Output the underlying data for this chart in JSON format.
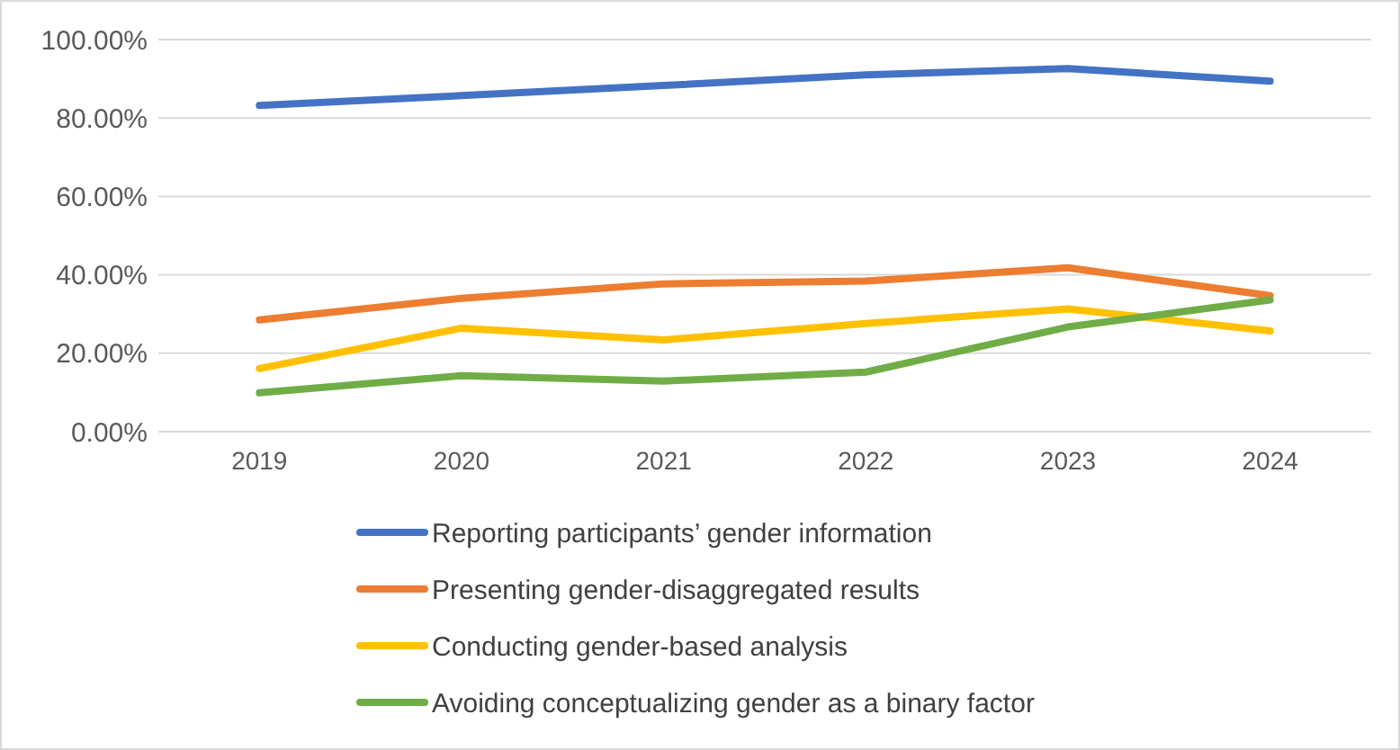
{
  "chart_data": {
    "type": "line",
    "categories": [
      "2019",
      "2020",
      "2021",
      "2022",
      "2023",
      "2024"
    ],
    "series": [
      {
        "name": "Reporting participants’ gender information",
        "color": "#4472c4",
        "values": [
          83.2,
          85.7,
          88.3,
          91,
          92.6,
          89.4
        ]
      },
      {
        "name": "Presenting gender-disaggregated results",
        "color": "#ed7d31",
        "values": [
          28.5,
          34,
          37.7,
          38.4,
          41.8,
          34.7
        ]
      },
      {
        "name": "Conducting gender-based analysis",
        "color": "#ffc000",
        "values": [
          16.1,
          26.4,
          23.4,
          27.6,
          31.3,
          25.7
        ]
      },
      {
        "name": "Avoiding conceptualizing gender as a binary factor",
        "color": "#70ad47",
        "values": [
          9.9,
          14.3,
          12.9,
          15.2,
          26.7,
          33.6
        ]
      }
    ],
    "ylim": [
      0,
      100
    ],
    "yticks": [
      {
        "value": 0,
        "label": "0.00%"
      },
      {
        "value": 20,
        "label": "20.00%"
      },
      {
        "value": 40,
        "label": "40.00%"
      },
      {
        "value": 60,
        "label": "60.00%"
      },
      {
        "value": 80,
        "label": "80.00%"
      },
      {
        "value": 100,
        "label": "100.00%"
      }
    ],
    "grid": "y",
    "legend": "bottom",
    "marker": "none",
    "line_style": "solid"
  }
}
